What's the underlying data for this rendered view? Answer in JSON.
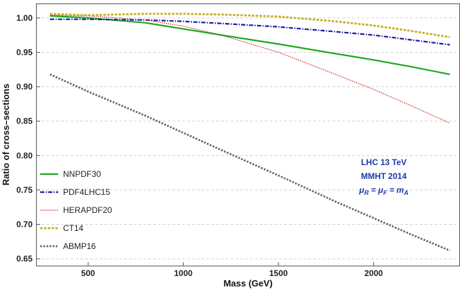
{
  "chart_data": {
    "type": "line",
    "title": "",
    "xlabel": "Mass (GeV)",
    "ylabel": "Ratio of cross–sections",
    "xlim": [
      230,
      2450
    ],
    "ylim": [
      0.64,
      1.02
    ],
    "xticks": [
      500,
      1000,
      1500,
      2000
    ],
    "xtick_labels": [
      "500",
      "1000",
      "1500",
      "2000"
    ],
    "yticks": [
      0.65,
      0.7,
      0.75,
      0.8,
      0.85,
      0.9,
      0.95,
      1.0
    ],
    "ytick_labels": [
      "0.65",
      "0.70",
      "0.75",
      "0.80",
      "0.85",
      "0.90",
      "0.95",
      "1.00"
    ],
    "grid": "horizontal dashed",
    "legend_position": "left",
    "series": [
      {
        "name": "NNPDF30",
        "color": "#1aa81a",
        "style": "solid",
        "x": [
          300,
          500,
          800,
          1000,
          1200,
          1500,
          1800,
          2000,
          2200,
          2400
        ],
        "y": [
          1.003,
          1.0,
          0.993,
          0.984,
          0.975,
          0.962,
          0.948,
          0.939,
          0.929,
          0.918
        ]
      },
      {
        "name": "PDF4LHC15",
        "color": "#1a1aa6",
        "style": "dashdot",
        "x": [
          300,
          500,
          800,
          1000,
          1200,
          1500,
          1800,
          2000,
          2200,
          2400
        ],
        "y": [
          0.998,
          0.998,
          0.997,
          0.995,
          0.992,
          0.987,
          0.98,
          0.975,
          0.968,
          0.961
        ]
      },
      {
        "name": "HERAPDF20",
        "color": "#cc2222",
        "style": "dotted",
        "x": [
          300,
          500,
          800,
          1000,
          1200,
          1500,
          1800,
          2000,
          2200,
          2400
        ],
        "y": [
          1.004,
          1.003,
          0.997,
          0.988,
          0.975,
          0.95,
          0.918,
          0.896,
          0.872,
          0.847
        ]
      },
      {
        "name": "CT14",
        "color": "#c4b020",
        "style": "dashed",
        "x": [
          300,
          500,
          800,
          1000,
          1200,
          1500,
          1800,
          2000,
          2200,
          2400
        ],
        "y": [
          1.006,
          1.004,
          1.006,
          1.006,
          1.005,
          1.002,
          0.995,
          0.989,
          0.981,
          0.972
        ]
      },
      {
        "name": "ABMP16",
        "color": "#666666",
        "style": "dotted-thick",
        "x": [
          300,
          500,
          800,
          1000,
          1200,
          1500,
          1800,
          2000,
          2200,
          2400
        ],
        "y": [
          0.918,
          0.893,
          0.858,
          0.833,
          0.808,
          0.771,
          0.733,
          0.709,
          0.685,
          0.662
        ]
      }
    ],
    "annotations": [
      "LHC 13 TeV",
      "MMHT 2014",
      "μ_R = μ_F = m_A"
    ]
  },
  "annotation_math": {
    "mu": "μ",
    "sub_r": "R",
    "sub_f": "F",
    "sub_a": "A",
    "m": "m",
    "eq": " = "
  }
}
